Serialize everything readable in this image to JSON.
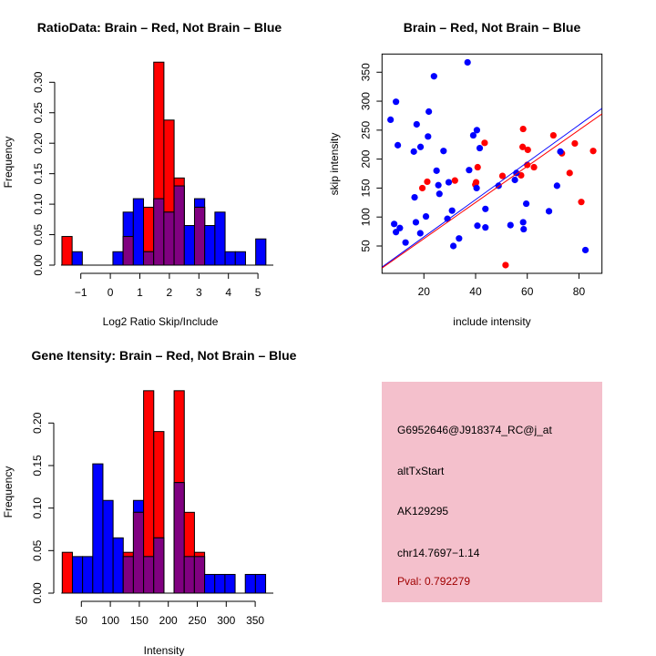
{
  "chart_data": [
    {
      "type": "bar",
      "subtype": "overlaid-histogram",
      "title": "RatioData: Brain – Red, Not Brain – Blue",
      "xlabel": "Log2 Ratio Skip/Include",
      "ylabel": "Frequency",
      "bin_start": -1.64,
      "bin_width": 0.3455,
      "xticks": [
        -1,
        0,
        1,
        2,
        3,
        4,
        5
      ],
      "xtick_labels": [
        "−1",
        "0",
        "1",
        "2",
        "3",
        "4",
        "5"
      ],
      "yticks": [
        0,
        0.05,
        0.1,
        0.15,
        0.2,
        0.25,
        0.3
      ],
      "ytick_labels": [
        "0.00",
        "0.05",
        "0.10",
        "0.15",
        "0.20",
        "0.25",
        "0.30"
      ],
      "series": [
        {
          "name": "Brain",
          "color": "#ff0000",
          "values": [
            0.047,
            0,
            0,
            0,
            0,
            0,
            0.047,
            0,
            0.095,
            0.333,
            0.238,
            0.143,
            0,
            0.095,
            0,
            0,
            0,
            0,
            0,
            0
          ]
        },
        {
          "name": "Not Brain",
          "color": "#0000ff",
          "values": [
            0,
            0.022,
            0,
            0,
            0,
            0.022,
            0.087,
            0.109,
            0.022,
            0.109,
            0.087,
            0.13,
            0.065,
            0.109,
            0.065,
            0.087,
            0.022,
            0.022,
            0,
            0.043
          ]
        }
      ],
      "overlap_color": "#800080"
    },
    {
      "type": "scatter",
      "title": "Brain – Red, Not Brain – Blue",
      "xlabel": "include intensity",
      "ylabel": "skip intensity",
      "xlim": [
        3.8,
        88.9
      ],
      "ylim": [
        2.8,
        381.4
      ],
      "xticks": [
        20,
        40,
        60,
        80
      ],
      "xtick_labels": [
        "20",
        "40",
        "60",
        "80"
      ],
      "yticks": [
        50,
        100,
        150,
        200,
        250,
        300,
        350
      ],
      "ytick_labels": [
        "50",
        "100",
        "150",
        "200",
        "250",
        "300",
        "350"
      ],
      "series": [
        {
          "name": "Brain",
          "color": "#ff0000",
          "points": [
            [
              19.4,
              150
            ],
            [
              21.3,
              161
            ],
            [
              32.0,
              163
            ],
            [
              39.9,
              156
            ],
            [
              40.2,
              160
            ],
            [
              40.8,
              186
            ],
            [
              43.5,
              228
            ],
            [
              50.4,
              171
            ],
            [
              51.6,
              17
            ],
            [
              57.6,
              172
            ],
            [
              58.2,
              221
            ],
            [
              58.4,
              252
            ],
            [
              60.0,
              190
            ],
            [
              60.2,
              216
            ],
            [
              62.6,
              186
            ],
            [
              70.1,
              241
            ],
            [
              73.4,
              210
            ],
            [
              76.4,
              176
            ],
            [
              78.4,
              227
            ],
            [
              80.9,
              126
            ],
            [
              85.5,
              214
            ]
          ],
          "fit": {
            "slope": 3.126,
            "intercept": 0.1
          }
        },
        {
          "name": "Not Brain",
          "color": "#0000ff",
          "points": [
            [
              7.1,
              268
            ],
            [
              9.2,
              299
            ],
            [
              9.9,
              224
            ],
            [
              8.5,
              88
            ],
            [
              9.2,
              74
            ],
            [
              10.7,
              81
            ],
            [
              12.9,
              56
            ],
            [
              17.2,
              260
            ],
            [
              16.4,
              134
            ],
            [
              16.9,
              91
            ],
            [
              16.1,
              213
            ],
            [
              18.7,
              221
            ],
            [
              18.6,
              72
            ],
            [
              21.6,
              239
            ],
            [
              21.9,
              282
            ],
            [
              20.8,
              101
            ],
            [
              23.9,
              343
            ],
            [
              24.9,
              180
            ],
            [
              25.6,
              155
            ],
            [
              26.0,
              140
            ],
            [
              27.6,
              214
            ],
            [
              29.1,
              97
            ],
            [
              29.6,
              160
            ],
            [
              30.9,
              111
            ],
            [
              31.4,
              50
            ],
            [
              33.6,
              63
            ],
            [
              36.9,
              367
            ],
            [
              37.5,
              181
            ],
            [
              39.1,
              241
            ],
            [
              40.5,
              250
            ],
            [
              40.4,
              150
            ],
            [
              40.7,
              85
            ],
            [
              41.6,
              219
            ],
            [
              43.8,
              114
            ],
            [
              43.8,
              82
            ],
            [
              48.9,
              154
            ],
            [
              53.5,
              86
            ],
            [
              55.2,
              164
            ],
            [
              55.8,
              176
            ],
            [
              58.4,
              91
            ],
            [
              58.6,
              79
            ],
            [
              59.6,
              123
            ],
            [
              68.4,
              110
            ],
            [
              71.5,
              154
            ],
            [
              72.8,
              213
            ],
            [
              82.5,
              43
            ]
          ],
          "fit": {
            "slope": 3.22,
            "intercept": 1.26
          }
        }
      ]
    },
    {
      "type": "bar",
      "subtype": "overlaid-histogram",
      "title": "Gene Itensity: Brain – Red, Not Brain – Blue",
      "xlabel": "Intensity",
      "ylabel": "Frequency",
      "bin_start": 17,
      "bin_width": 17.55,
      "xticks": [
        50,
        100,
        150,
        200,
        250,
        300,
        350
      ],
      "xtick_labels": [
        "50",
        "100",
        "150",
        "200",
        "250",
        "300",
        "350"
      ],
      "yticks": [
        0,
        0.05,
        0.1,
        0.15,
        0.2
      ],
      "ytick_labels": [
        "0.00",
        "0.05",
        "0.10",
        "0.15",
        "0.20"
      ],
      "series": [
        {
          "name": "Brain",
          "color": "#ff0000",
          "values": [
            0.048,
            0,
            0,
            0,
            0,
            0,
            0.048,
            0.095,
            0.238,
            0.19,
            0,
            0.238,
            0.095,
            0.048,
            0,
            0,
            0,
            0,
            0,
            0
          ]
        },
        {
          "name": "Not Brain",
          "color": "#0000ff",
          "values": [
            0,
            0.043,
            0.043,
            0.152,
            0.109,
            0.065,
            0.043,
            0.109,
            0.043,
            0.065,
            0,
            0.13,
            0.043,
            0.043,
            0.022,
            0.022,
            0.022,
            0,
            0.022,
            0.022
          ]
        }
      ],
      "overlap_color": "#800080"
    }
  ],
  "info_panel": {
    "background": "#f4c0cc",
    "probe_id": "G6952646@J918374_RC@j_at",
    "event_type": "altTxStart",
    "accession": "AK129295",
    "location": "chr14.7697−1.14",
    "pval": "Pval: 0.792279",
    "pval_color": "#a00000"
  }
}
